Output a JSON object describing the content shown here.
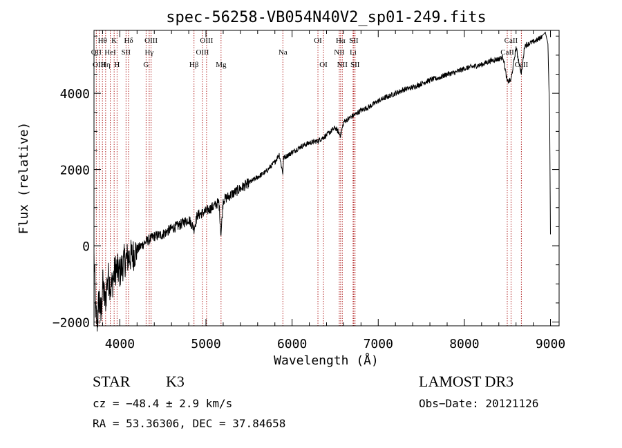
{
  "chart_data": {
    "type": "line",
    "title": "spec-56258-VB054N40V2_sp01-249.fits",
    "xlabel": "Wavelength (Å)",
    "ylabel": "Flux (relative)",
    "xlim": [
      3700,
      9100
    ],
    "ylim": [
      -2100,
      5650
    ],
    "x_ticks": [
      4000,
      5000,
      6000,
      7000,
      8000,
      9000
    ],
    "x_tick_labels": [
      "4000",
      "5000",
      "6000",
      "7000",
      "8000",
      "9000"
    ],
    "y_ticks": [
      -2000,
      0,
      2000,
      4000
    ],
    "y_tick_labels": [
      "−2000",
      "0",
      "2000",
      "4000"
    ],
    "grid": false,
    "series": [
      {
        "name": "flux",
        "x": [
          3700,
          3720,
          3740,
          3760,
          3780,
          3800,
          3830,
          3860,
          3900,
          3950,
          4000,
          4050,
          4100,
          4150,
          4200,
          4300,
          4400,
          4500,
          4600,
          4700,
          4800,
          4861,
          4900,
          5000,
          5100,
          5150,
          5175,
          5200,
          5300,
          5400,
          5500,
          5600,
          5700,
          5800,
          5850,
          5893,
          5900,
          6000,
          6100,
          6200,
          6300,
          6400,
          6500,
          6563,
          6600,
          6700,
          6800,
          6900,
          7000,
          7100,
          7200,
          7300,
          7400,
          7500,
          7600,
          7700,
          7800,
          7900,
          8000,
          8100,
          8200,
          8300,
          8400,
          8450,
          8498,
          8542,
          8600,
          8662,
          8700,
          8800,
          8850,
          8900,
          8940,
          8970,
          8990,
          9000
        ],
        "y": [
          -300,
          -1800,
          -2000,
          -1300,
          -1900,
          -1000,
          -1500,
          -800,
          -1100,
          -600,
          -700,
          -400,
          -300,
          -250,
          -100,
          100,
          250,
          300,
          450,
          550,
          700,
          450,
          800,
          900,
          1050,
          1150,
          300,
          1200,
          1350,
          1500,
          1650,
          1800,
          1950,
          2200,
          2400,
          1900,
          2300,
          2450,
          2600,
          2700,
          2750,
          2900,
          3100,
          2900,
          3250,
          3400,
          3550,
          3650,
          3800,
          3900,
          4000,
          4100,
          4150,
          4250,
          4350,
          4400,
          4500,
          4550,
          4650,
          4700,
          4750,
          4850,
          4900,
          4950,
          4300,
          4350,
          5200,
          4500,
          5250,
          5350,
          5400,
          5500,
          5600,
          5300,
          3400,
          300
        ]
      }
    ],
    "lines": [
      {
        "name": "OII",
        "wave": 3727,
        "row": 1
      },
      {
        "name": "OIII",
        "wave": 3760,
        "row": 2
      },
      {
        "name": "Hθ",
        "wave": 3798,
        "row": 0
      },
      {
        "name": "Hη",
        "wave": 3835,
        "row": 2
      },
      {
        "name": "HeI",
        "wave": 3889,
        "row": 1
      },
      {
        "name": "K",
        "wave": 3934,
        "row": 0
      },
      {
        "name": "H",
        "wave": 3968,
        "row": 2
      },
      {
        "name": "SII",
        "wave": 4072,
        "row": 1
      },
      {
        "name": "Hδ",
        "wave": 4102,
        "row": 0
      },
      {
        "name": "G",
        "wave": 4305,
        "row": 2
      },
      {
        "name": "Hγ",
        "wave": 4341,
        "row": 1
      },
      {
        "name": "OIII",
        "wave": 4363,
        "row": 0
      },
      {
        "name": "Hβ",
        "wave": 4861,
        "row": 2
      },
      {
        "name": "OIII",
        "wave": 4959,
        "row": 1
      },
      {
        "name": "OIII",
        "wave": 5007,
        "row": 0
      },
      {
        "name": "Mg",
        "wave": 5175,
        "row": 2
      },
      {
        "name": "Na",
        "wave": 5893,
        "row": 1
      },
      {
        "name": "OI",
        "wave": 6300,
        "row": 0
      },
      {
        "name": "OI",
        "wave": 6364,
        "row": 2
      },
      {
        "name": "NII",
        "wave": 6548,
        "row": 1
      },
      {
        "name": "Hα",
        "wave": 6563,
        "row": 0
      },
      {
        "name": "NII",
        "wave": 6583,
        "row": 2
      },
      {
        "name": "SII",
        "wave": 6716,
        "row": 0
      },
      {
        "name": "Li",
        "wave": 6708,
        "row": 1
      },
      {
        "name": "SII",
        "wave": 6731,
        "row": 2
      },
      {
        "name": "CaII",
        "wave": 8498,
        "row": 1
      },
      {
        "name": "CaII",
        "wave": 8542,
        "row": 0
      },
      {
        "name": "CaII",
        "wave": 8662,
        "row": 2
      }
    ]
  },
  "info": {
    "obj_class": "STAR",
    "subclass": "K3",
    "cz": "cz = −48.4 ± 2.9 km/s",
    "radec": "RA =  53.36306, DEC =  37.84658",
    "survey": "LAMOST DR3",
    "obs_date": "Obs−Date: 20121126"
  },
  "colors": {
    "spectrum": "#000000",
    "line_marker": "#b22222",
    "axis": "#000000"
  }
}
